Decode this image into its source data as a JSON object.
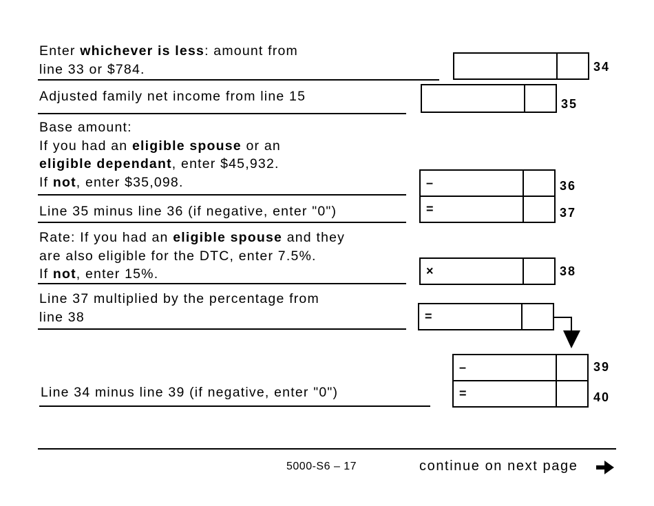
{
  "lines": {
    "l34": {
      "a": "Enter ",
      "b": "whichever is less",
      "c": ": amount from",
      "d": "line 33 or $784.",
      "number": "34"
    },
    "l35": {
      "text": "Adjusted family net income from line 15",
      "number": "35"
    },
    "l36": {
      "l1": "Base amount:",
      "l2a": "If you had an ",
      "l2b": "eligible spouse",
      "l2c": " or an",
      "l3a": "eligible dependant",
      "l3b": ", enter $45,932.",
      "l4a": "If ",
      "l4b": "not",
      "l4c": ", enter $35,098.",
      "operator": "–",
      "number": "36"
    },
    "l37": {
      "text": "Line 35 minus line 36 (if negative, enter \"0\")",
      "operator": "=",
      "number": "37"
    },
    "l38": {
      "l1a": "Rate: If you had an ",
      "l1b": "eligible spouse",
      "l1c": " and they",
      "l2": "are also eligible for the DTC, enter 7.5%.",
      "l3a": "If ",
      "l3b": "not",
      "l3c": ", enter 15%.",
      "operator": "×",
      "number": "38"
    },
    "l39calc": {
      "l1": "Line 37 multiplied by the percentage from",
      "l2": "line 38",
      "operator": "="
    },
    "l39": {
      "operator": "–",
      "number": "39"
    },
    "l40": {
      "text": "Line 34 minus line 39 (if negative, enter \"0\")",
      "operator": "=",
      "number": "40"
    }
  },
  "footer": {
    "form_id": "5000-S6 – 17",
    "continue": "continue on next page",
    "arrow_icon": "right-arrow-icon"
  }
}
